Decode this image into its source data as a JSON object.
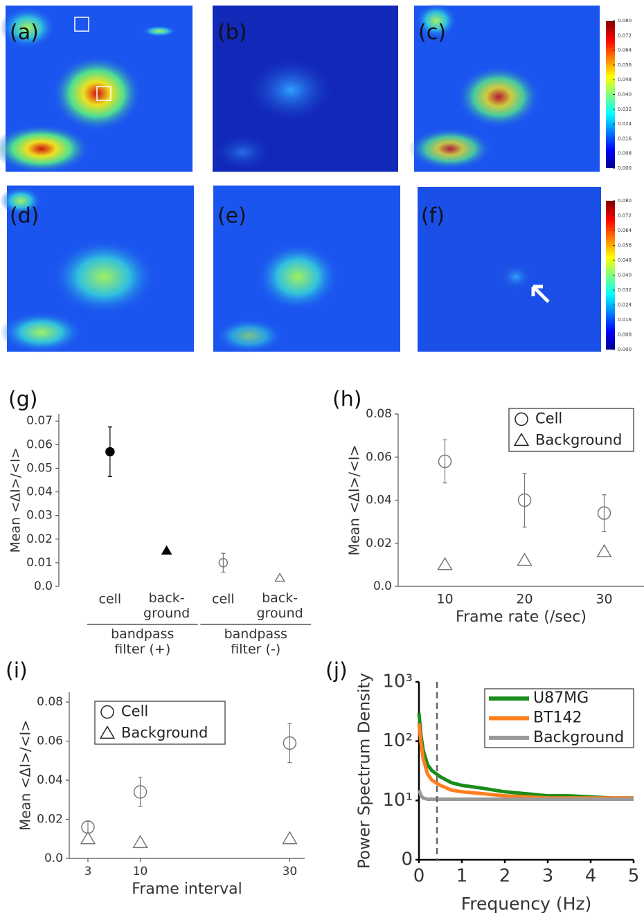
{
  "images": {
    "panels": [
      "(a)",
      "(b)",
      "(c)",
      "(d)",
      "(e)",
      "(f)"
    ],
    "colorbar": {
      "ticks": [
        {
          "value": 0,
          "label": "0.000"
        },
        {
          "value": 0.008,
          "label": "0.008"
        },
        {
          "value": 0.016,
          "label": "0.016"
        },
        {
          "value": 0.024,
          "label": "0.024"
        },
        {
          "value": 0.032,
          "label": "0.032"
        },
        {
          "value": 0.04,
          "label": "0.040"
        },
        {
          "value": 0.048,
          "label": "0.048"
        },
        {
          "value": 0.056,
          "label": "0.056"
        },
        {
          "value": 0.064,
          "label": "0.064"
        },
        {
          "value": 0.072,
          "label": "0.072"
        },
        {
          "value": 0.08,
          "label": "0.080"
        }
      ]
    }
  },
  "chart_data": [
    {
      "type": "scatter",
      "panel_label": "(g)",
      "ylabel": "Mean <ΔI>/<I>",
      "categories": [
        "cell",
        "back-\nground",
        "cell",
        "back-\nground"
      ],
      "values": [
        0.057,
        0.015,
        0.01,
        0.0035
      ],
      "errors": [
        0.0105,
        null,
        0.004,
        null
      ],
      "markers": [
        "filled-circle",
        "filled-triangle",
        "circle",
        "triangle"
      ],
      "colors": [
        "#000000",
        "#000000",
        "#777777",
        "#777777"
      ],
      "groups": [
        "bandpass\nfilter (+)",
        "bandpass\nfilter (-)"
      ],
      "ylim": [
        0,
        0.073
      ],
      "yticks": [
        {
          "value": 0,
          "label": "0.0"
        },
        0.01,
        0.02,
        0.03,
        0.04,
        0.05,
        0.06,
        0.07
      ]
    },
    {
      "type": "scatter",
      "panel_label": "(h)",
      "ylabel": "Mean <ΔI>/<I>",
      "xlabel": "Frame rate (/sec)",
      "categories": [
        "10",
        "20",
        "30"
      ],
      "legend": "upper-right",
      "series": [
        {
          "name": "Cell",
          "marker": "circle",
          "color": "#777777",
          "values": [
            0.058,
            0.04,
            0.034
          ],
          "errors": [
            0.01,
            0.0125,
            0.0085
          ]
        },
        {
          "name": "Background",
          "marker": "triangle",
          "color": "#777777",
          "values": [
            0.01,
            0.012,
            0.016
          ]
        }
      ],
      "ylim": [
        0,
        0.08
      ],
      "yticks": [
        {
          "value": 0,
          "label": "0.0"
        },
        0.02,
        0.04,
        0.06,
        0.08
      ]
    },
    {
      "type": "scatter",
      "panel_label": "(i)",
      "ylabel": "Mean <ΔI>/<I>",
      "xlabel": "Frame interval",
      "x": [
        3,
        10,
        30
      ],
      "xlim": [
        0.5,
        32
      ],
      "xticks": [
        3,
        10,
        30
      ],
      "legend": "upper-left",
      "series": [
        {
          "name": "Cell",
          "marker": "circle",
          "color": "#777777",
          "values": [
            0.016,
            0.034,
            0.059
          ],
          "errors": [
            0.003,
            0.0075,
            0.01
          ]
        },
        {
          "name": "Background",
          "marker": "triangle",
          "color": "#777777",
          "values": [
            0.01,
            0.008,
            0.01
          ]
        }
      ],
      "ylim": [
        0,
        0.085
      ],
      "yticks": [
        {
          "value": 0,
          "label": "0.0"
        },
        0.02,
        0.04,
        0.06,
        0.08
      ]
    },
    {
      "type": "line",
      "panel_label": "(j)",
      "ylabel": "Power Spectrum Density",
      "xlabel": "Frequency (Hz)",
      "x": [
        0,
        0.05,
        0.1,
        0.2,
        0.3,
        0.5,
        0.75,
        1,
        1.5,
        2,
        2.5,
        3,
        3.5,
        4,
        4.5,
        5
      ],
      "series": [
        {
          "name": "U87MG",
          "color": "#1a8c1a",
          "values": [
            300,
            120,
            70,
            40,
            32,
            25,
            20,
            18,
            16,
            14,
            13,
            12,
            12,
            11.5,
            11,
            11
          ]
        },
        {
          "name": "BT142",
          "color": "#ff7f1e",
          "values": [
            200,
            90,
            50,
            28,
            22,
            18,
            15,
            14,
            13,
            12,
            11.5,
            11,
            11,
            11,
            11,
            11
          ]
        },
        {
          "name": "Background",
          "color": "#999999",
          "values": [
            15,
            12,
            11,
            10.5,
            10.5,
            10.5,
            10.5,
            10.5,
            10.5,
            10.5,
            10.5,
            10.5,
            10.5,
            10.5,
            10.5,
            10.5
          ]
        }
      ],
      "vline": 0.42,
      "log_y": true,
      "legend": "upper-right",
      "xlim": [
        0,
        5
      ],
      "xticks": [
        0,
        1,
        2,
        3,
        4,
        5
      ],
      "ylim": [
        1,
        1000
      ],
      "yticks": [
        {
          "value": 1,
          "label": "0"
        },
        {
          "value": 10,
          "label": "10¹"
        },
        {
          "value": 100,
          "label": "10²"
        },
        {
          "value": 1000,
          "label": "10³"
        }
      ]
    }
  ]
}
